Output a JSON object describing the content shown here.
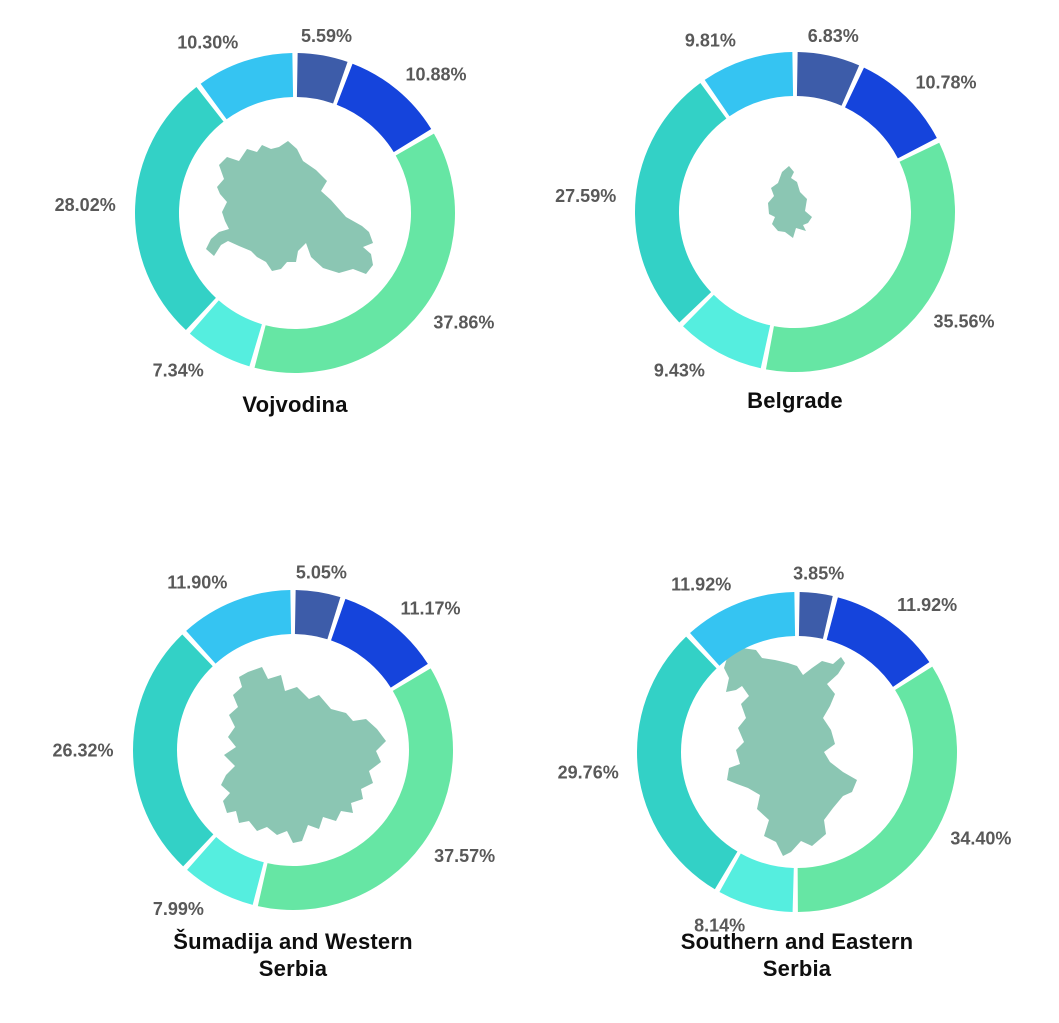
{
  "figure_type": "2x2 grid of donut charts with region map silhouettes in the center",
  "colors": {
    "background": "#ffffff",
    "label_text": "#595959",
    "title_text": "#0e0e0e",
    "map_fill": "#8bc6b3"
  },
  "chart_data": [
    {
      "type": "pie",
      "subtype": "donut",
      "title": "Vojvodina",
      "map_icon": "vojvodina-map-icon",
      "hole": 0.72,
      "rotation_deg": 0,
      "direction": "clockwise",
      "labels_position": "outside",
      "legend": false,
      "slices": [
        {
          "label": "5.59%",
          "value": 5.59,
          "color": "#3d5ca9",
          "color_name": "dark-slate-blue"
        },
        {
          "label": "10.88%",
          "value": 10.88,
          "color": "#1544dc",
          "color_name": "royal-blue"
        },
        {
          "label": "37.86%",
          "value": 37.86,
          "color": "#66e6a4",
          "color_name": "mint-green"
        },
        {
          "label": "7.34%",
          "value": 7.34,
          "color": "#55eedf",
          "color_name": "light-cyan"
        },
        {
          "label": "28.02%",
          "value": 28.02,
          "color": "#33d1c6",
          "color_name": "teal"
        },
        {
          "label": "10.30%",
          "value": 10.3,
          "color": "#35c4f2",
          "color_name": "sky-blue"
        }
      ]
    },
    {
      "type": "pie",
      "subtype": "donut",
      "title": "Belgrade",
      "map_icon": "belgrade-map-icon",
      "hole": 0.72,
      "rotation_deg": 0,
      "direction": "clockwise",
      "labels_position": "outside",
      "legend": false,
      "slices": [
        {
          "label": "6.83%",
          "value": 6.83,
          "color": "#3d5ca9",
          "color_name": "dark-slate-blue"
        },
        {
          "label": "10.78%",
          "value": 10.78,
          "color": "#1544dc",
          "color_name": "royal-blue"
        },
        {
          "label": "35.56%",
          "value": 35.56,
          "color": "#66e6a4",
          "color_name": "mint-green"
        },
        {
          "label": "9.43%",
          "value": 9.43,
          "color": "#55eedf",
          "color_name": "light-cyan"
        },
        {
          "label": "27.59%",
          "value": 27.59,
          "color": "#33d1c6",
          "color_name": "teal"
        },
        {
          "label": "9.81%",
          "value": 9.81,
          "color": "#35c4f2",
          "color_name": "sky-blue"
        }
      ]
    },
    {
      "type": "pie",
      "subtype": "donut",
      "title": "Šumadija and Western Serbia",
      "map_icon": "sumadija-western-serbia-map-icon",
      "hole": 0.72,
      "rotation_deg": 0,
      "direction": "clockwise",
      "labels_position": "outside",
      "legend": false,
      "slices": [
        {
          "label": "5.05%",
          "value": 5.05,
          "color": "#3d5ca9",
          "color_name": "dark-slate-blue"
        },
        {
          "label": "11.17%",
          "value": 11.17,
          "color": "#1544dc",
          "color_name": "royal-blue"
        },
        {
          "label": "37.57%",
          "value": 37.57,
          "color": "#66e6a4",
          "color_name": "mint-green"
        },
        {
          "label": "7.99%",
          "value": 7.99,
          "color": "#55eedf",
          "color_name": "light-cyan"
        },
        {
          "label": "26.32%",
          "value": 26.32,
          "color": "#33d1c6",
          "color_name": "teal"
        },
        {
          "label": "11.90%",
          "value": 11.9,
          "color": "#35c4f2",
          "color_name": "sky-blue"
        }
      ]
    },
    {
      "type": "pie",
      "subtype": "donut",
      "title": "Southern and Eastern Serbia",
      "map_icon": "southern-eastern-serbia-map-icon",
      "hole": 0.72,
      "rotation_deg": 0,
      "direction": "clockwise",
      "labels_position": "outside",
      "legend": false,
      "slices": [
        {
          "label": "3.85%",
          "value": 3.85,
          "color": "#3d5ca9",
          "color_name": "dark-slate-blue"
        },
        {
          "label": "11.92%",
          "value": 11.92,
          "color": "#1544dc",
          "color_name": "royal-blue"
        },
        {
          "label": "34.40%",
          "value": 34.4,
          "color": "#66e6a4",
          "color_name": "mint-green"
        },
        {
          "label": "8.14%",
          "value": 8.14,
          "color": "#55eedf",
          "color_name": "light-cyan"
        },
        {
          "label": "29.76%",
          "value": 29.76,
          "color": "#33d1c6",
          "color_name": "teal"
        },
        {
          "label": "11.92%",
          "value": 11.92,
          "color": "#35c4f2",
          "color_name": "sky-blue"
        }
      ]
    }
  ]
}
